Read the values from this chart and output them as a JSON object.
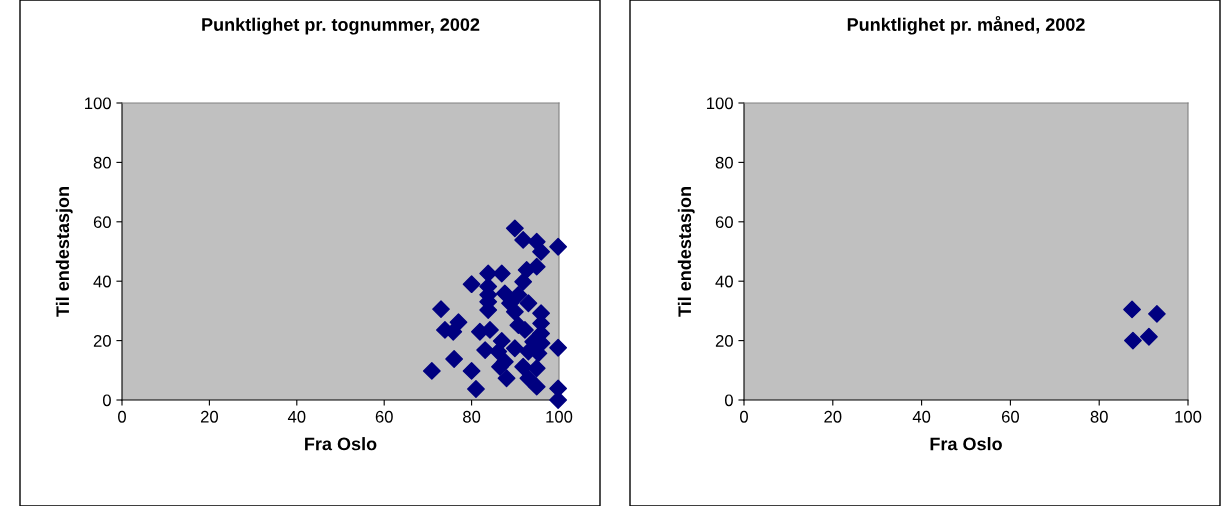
{
  "chart_data": [
    {
      "type": "scatter",
      "title": "Punktlighet pr. tognummer, 2002",
      "xlabel": "Fra Oslo",
      "ylabel": "Til endestasjon",
      "xlim": [
        0,
        100
      ],
      "ylim": [
        0,
        100
      ],
      "xticks": [
        0,
        20,
        40,
        60,
        80,
        100
      ],
      "yticks": [
        0,
        20,
        40,
        60,
        80,
        100
      ],
      "marker": "diamond",
      "grid": false,
      "series": [
        {
          "color": "#000080",
          "x": [
            89.9,
            91.8,
            94.9,
            99.8,
            95.9,
            94.9,
            92.6,
            83.8,
            86.9,
            91.8,
            80.0,
            83.8,
            83.8,
            87.6,
            90.7,
            83.8,
            88.8,
            93.0,
            83.8,
            73.0,
            89.9,
            95.9,
            95.9,
            77.0,
            73.9,
            75.8,
            81.9,
            84.2,
            92.2,
            95.9,
            86.9,
            94.1,
            96.0,
            99.8,
            83.1,
            89.9,
            93.0,
            95.3,
            86.1,
            76.0,
            87.6,
            86.5,
            91.8,
            94.9,
            70.9,
            80.0,
            88.0,
            93.0,
            94.9,
            81.0,
            99.8,
            99.8,
            90.7
          ],
          "values": [
            57.8,
            53.9,
            53.3,
            51.6,
            49.9,
            44.9,
            43.8,
            42.6,
            42.6,
            39.8,
            39.0,
            38.2,
            35.4,
            35.9,
            35.4,
            33.1,
            32.6,
            32.6,
            30.3,
            30.6,
            29.7,
            29.2,
            25.8,
            26.2,
            23.6,
            23.0,
            23.0,
            23.6,
            23.6,
            22.4,
            19.9,
            19.6,
            19.1,
            17.6,
            16.8,
            17.4,
            16.3,
            15.7,
            16.3,
            13.8,
            12.9,
            11.2,
            11.2,
            10.7,
            9.8,
            9.8,
            7.3,
            7.3,
            4.5,
            3.7,
            3.9,
            0,
            25.2
          ]
        }
      ]
    },
    {
      "type": "scatter",
      "title": "Punktlighet pr. måned, 2002",
      "xlabel": "Fra Oslo",
      "ylabel": "Til endestasjon",
      "xlim": [
        0,
        100
      ],
      "ylim": [
        0,
        100
      ],
      "xticks": [
        0,
        20,
        40,
        60,
        80,
        100
      ],
      "yticks": [
        0,
        20,
        40,
        60,
        80,
        100
      ],
      "marker": "diamond",
      "grid": false,
      "series": [
        {
          "color": "#000080",
          "x": [
            87.4,
            93.0,
            87.6,
            91.2
          ],
          "values": [
            30.5,
            29.0,
            20.0,
            21.3
          ]
        }
      ]
    }
  ]
}
